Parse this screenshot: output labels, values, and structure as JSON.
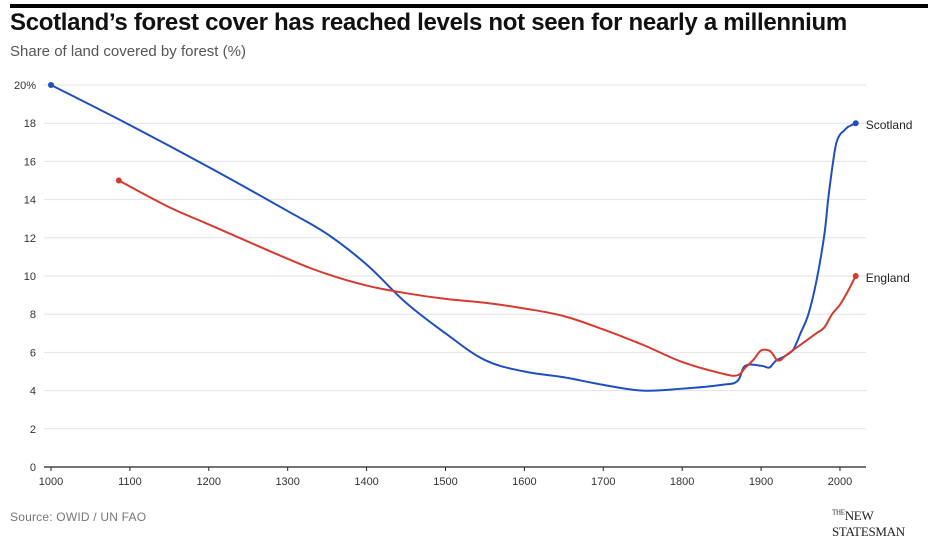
{
  "header": {
    "title": "Scotland’s forest cover has reached levels not seen for nearly a millennium",
    "subtitle": "Share of land covered by forest (%)"
  },
  "footer": {
    "source": "Source: OWID / UN FAO",
    "brand_prefix": "THE",
    "brand_name": "NEW STATESMAN"
  },
  "colors": {
    "scotland": "#1f4fbf",
    "england": "#d63a2f",
    "grid": "#e3e3e3",
    "axis": "#222222"
  },
  "chart_data": {
    "type": "line",
    "title": "Scotland’s forest cover has reached levels not seen for nearly a millennium",
    "subtitle": "Share of land covered by forest (%)",
    "xlabel": "",
    "ylabel": "",
    "xlim": [
      1000,
      2033
    ],
    "ylim": [
      0,
      20
    ],
    "x_ticks": [
      1000,
      1100,
      1200,
      1300,
      1400,
      1500,
      1600,
      1700,
      1800,
      1900,
      2000
    ],
    "y_ticks": [
      0,
      2,
      4,
      6,
      8,
      10,
      12,
      14,
      16,
      18,
      20
    ],
    "y_tick_labels": [
      "0",
      "2",
      "4",
      "6",
      "8",
      "10",
      "12",
      "14",
      "16",
      "18",
      "20%"
    ],
    "grid": true,
    "legend": "direct labels at line ends",
    "series": [
      {
        "name": "Scotland",
        "color": "#1f4fbf",
        "x": [
          1000,
          1100,
          1200,
          1300,
          1350,
          1400,
          1450,
          1500,
          1550,
          1600,
          1650,
          1700,
          1750,
          1800,
          1850,
          1870,
          1880,
          1900,
          1910,
          1915,
          1920,
          1930,
          1940,
          1945,
          1950,
          1960,
          1970,
          1980,
          1985,
          1990,
          1995,
          2000,
          2005,
          2010,
          2020
        ],
        "y": [
          20,
          17.9,
          15.7,
          13.4,
          12.2,
          10.6,
          8.6,
          7.0,
          5.6,
          5.0,
          4.7,
          4.3,
          4.0,
          4.1,
          4.3,
          4.5,
          5.3,
          5.3,
          5.2,
          5.4,
          5.6,
          5.8,
          6.1,
          6.5,
          7.0,
          8.0,
          9.7,
          12.1,
          14.0,
          15.6,
          16.9,
          17.4,
          17.6,
          17.8,
          18.0
        ]
      },
      {
        "name": "England",
        "color": "#d63a2f",
        "x": [
          1086,
          1150,
          1200,
          1300,
          1350,
          1400,
          1450,
          1500,
          1550,
          1600,
          1650,
          1700,
          1750,
          1800,
          1850,
          1870,
          1880,
          1890,
          1900,
          1910,
          1915,
          1920,
          1925,
          1930,
          1940,
          1950,
          1960,
          1970,
          1980,
          1990,
          2000,
          2010,
          2020
        ],
        "y": [
          15,
          13.6,
          12.7,
          10.9,
          10.1,
          9.5,
          9.1,
          8.8,
          8.6,
          8.3,
          7.9,
          7.2,
          6.4,
          5.5,
          4.9,
          4.8,
          5.2,
          5.6,
          6.1,
          6.1,
          5.9,
          5.6,
          5.6,
          5.8,
          6.1,
          6.4,
          6.7,
          7.0,
          7.3,
          8.0,
          8.5,
          9.2,
          10.0
        ]
      }
    ]
  }
}
